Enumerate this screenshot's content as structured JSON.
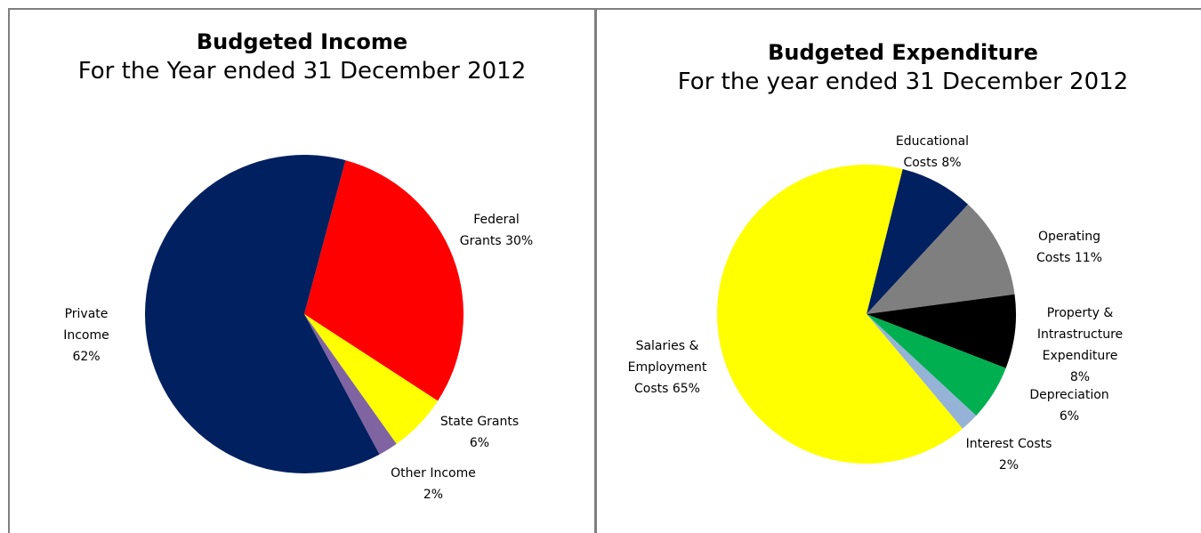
{
  "chart_data": [
    {
      "type": "pie",
      "title": "Budgeted Income",
      "subtitle": "For the Year ended 31 December 2012",
      "slices": [
        {
          "label": [
            "Federal",
            "Grants 30%"
          ],
          "value": 30,
          "color": "#ff0000"
        },
        {
          "label": [
            "State Grants",
            "6%"
          ],
          "value": 6,
          "color": "#ffff00"
        },
        {
          "label": [
            "Other Income",
            "2%"
          ],
          "value": 2,
          "color": "#8064a2"
        },
        {
          "label": [
            "Private",
            "Income",
            "62%"
          ],
          "value": 62,
          "color": "#002060"
        }
      ]
    },
    {
      "type": "pie",
      "title": "Budgeted Expenditure",
      "subtitle": "For the year ended 31 December 2012",
      "slices": [
        {
          "label": [
            "Educational",
            "Costs 8%"
          ],
          "value": 8,
          "color": "#002060"
        },
        {
          "label": [
            "Operating",
            "Costs 11%"
          ],
          "value": 11,
          "color": "#7f7f7f"
        },
        {
          "label": [
            "Property &",
            "Intrastructure",
            "Expenditure",
            "8%"
          ],
          "value": 8,
          "color": "#000000"
        },
        {
          "label": [
            "Depreciation",
            "6%"
          ],
          "value": 6,
          "color": "#00b050"
        },
        {
          "label": [
            "Interest Costs",
            "2%"
          ],
          "value": 2,
          "color": "#95b3d7"
        },
        {
          "label": [
            "Salaries &",
            "Employment",
            "Costs 65%"
          ],
          "value": 65,
          "color": "#ffff00"
        }
      ]
    }
  ]
}
